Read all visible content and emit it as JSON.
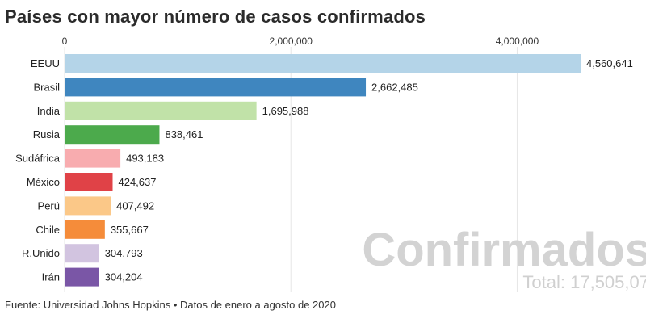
{
  "chart_data": {
    "type": "bar",
    "orientation": "horizontal",
    "title": "Países con mayor número de casos confirmados",
    "categories": [
      "EEUU",
      "Brasil",
      "India",
      "Rusia",
      "Sudáfrica",
      "México",
      "Perú",
      "Chile",
      "R.Unido",
      "Irán"
    ],
    "values": [
      4560641,
      2662485,
      1695988,
      838461,
      493183,
      424637,
      407492,
      355667,
      304793,
      304204
    ],
    "value_labels": [
      "4,560,641",
      "2,662,485",
      "1,695,988",
      "838,461",
      "493,183",
      "424,637",
      "407,492",
      "355,667",
      "304,793",
      "304,204"
    ],
    "colors": [
      "#b4d4e8",
      "#3f86bf",
      "#c1e2a8",
      "#4caa4c",
      "#f8acaf",
      "#e04247",
      "#fbc888",
      "#f58c3a",
      "#d2c4e0",
      "#7a56a6"
    ],
    "x_ticks": [
      0,
      2000000,
      4000000
    ],
    "x_tick_labels": [
      "0",
      "2,000,000",
      "4,000,000"
    ],
    "xlim": [
      0,
      4560641
    ],
    "grid": true,
    "xlabel": "",
    "ylabel": ""
  },
  "watermark": {
    "label": "Confirmados",
    "total": "Total: 17,505,07"
  },
  "source": "Fuente: Universidad Johns Hopkins • Datos de enero a agosto de 2020"
}
